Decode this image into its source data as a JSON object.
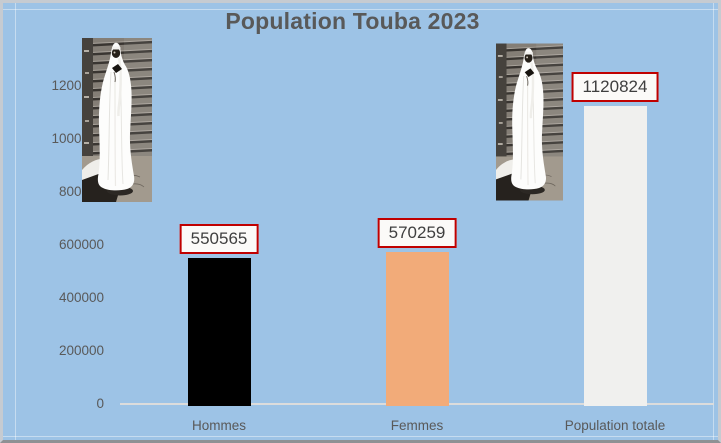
{
  "chart_data": {
    "type": "bar",
    "title": "Population Touba 2023",
    "categories": [
      "Hommes",
      "Femmes",
      "Population totale"
    ],
    "values": [
      550565,
      570259,
      1120824
    ],
    "data_labels": [
      "550565",
      "570259",
      "1120824"
    ],
    "bar_colors": [
      "#000000",
      "#f2ab79",
      "#f0f0ee"
    ],
    "yticks": [
      0,
      200000,
      400000,
      600000,
      800000,
      1000000,
      1200000
    ],
    "ytick_labels": [
      "0",
      "200000",
      "400000",
      "600000",
      "800000",
      "1000000",
      "1200000"
    ],
    "ylim": [
      0,
      1200000
    ],
    "xlabel": "",
    "ylabel": "",
    "grid": false,
    "legend": false,
    "background": "#9dc3e6",
    "title_color": "#595959",
    "axis_text_color": "#595959",
    "label_box_border": "#c00000",
    "label_box_fill": "#fbfaf8",
    "annotations": "two grayscale photos of a robed figure overlaid on the plot area"
  },
  "images": {
    "left_photo_icon": "robed-figure-photo",
    "right_photo_icon": "robed-figure-photo"
  }
}
